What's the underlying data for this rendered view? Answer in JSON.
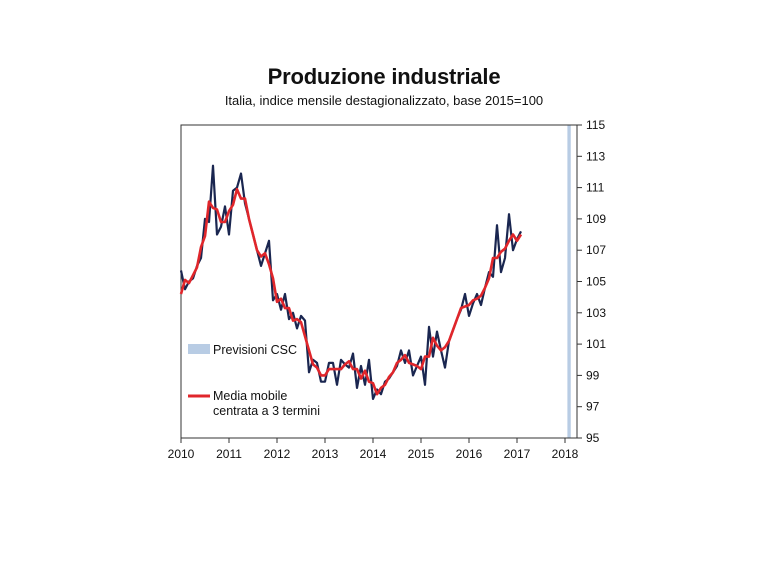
{
  "chart_data": {
    "type": "line",
    "title": "Produzione industriale",
    "subtitle": "Italia, indice mensile destagionalizzato,  base 2015=100",
    "ylim": [
      95,
      115
    ],
    "yticks": [
      95,
      97,
      99,
      101,
      103,
      105,
      107,
      109,
      111,
      113,
      115
    ],
    "xlim": [
      2010.0,
      2018.25
    ],
    "xticks": [
      "2010",
      "2011",
      "2012",
      "2013",
      "2014",
      "2015",
      "2016",
      "2017",
      "2018"
    ],
    "y_axis_side": "right",
    "forecast_band": {
      "label": "Previsioni CSC",
      "x_start": 2018.05,
      "x_end": 2018.12,
      "color": "#b8cce4"
    },
    "series": [
      {
        "name": "",
        "color": "#1a2650",
        "x_start": 2010.0,
        "step": 0.0833333,
        "values": [
          105.7,
          104.5,
          105.0,
          105.2,
          106.0,
          106.5,
          109.0,
          108.8,
          112.4,
          108.0,
          108.5,
          109.8,
          108.0,
          110.8,
          111.0,
          111.9,
          110.0,
          109.0,
          108.0,
          107.0,
          106.0,
          106.8,
          107.6,
          103.8,
          104.2,
          103.2,
          104.2,
          102.6,
          103.0,
          102.0,
          102.8,
          102.5,
          99.2,
          100.0,
          99.8,
          98.6,
          98.6,
          99.8,
          99.8,
          98.4,
          100.0,
          99.7,
          99.5,
          100.4,
          98.2,
          99.6,
          98.4,
          100.0,
          97.5,
          98.1,
          97.8,
          98.6,
          98.8,
          99.2,
          99.6,
          100.6,
          99.8,
          100.6,
          99.0,
          99.6,
          100.2,
          98.4,
          102.1,
          100.2,
          101.8,
          100.6,
          99.5,
          101.2,
          101.9,
          102.6,
          103.2,
          104.2,
          102.8,
          103.6,
          104.2,
          103.5,
          104.6,
          105.6,
          105.3,
          108.6,
          105.6,
          106.5,
          109.3,
          107.0,
          107.7,
          108.2
        ]
      },
      {
        "name": "Media mobile centrata a 3 termini",
        "color": "#e0262b",
        "x_start": 2010.0,
        "step": 0.0833333,
        "values": [
          104.2,
          105.1,
          104.9,
          105.4,
          105.9,
          107.2,
          107.9,
          110.1,
          109.7,
          109.6,
          108.8,
          108.8,
          109.5,
          109.9,
          110.9,
          110.3,
          110.3,
          109.0,
          108.0,
          107.0,
          106.6,
          106.8,
          106.1,
          105.2,
          103.7,
          103.9,
          103.3,
          103.3,
          102.5,
          102.6,
          102.4,
          101.5,
          100.6,
          99.7,
          99.5,
          99.0,
          99.0,
          99.4,
          99.4,
          99.4,
          99.4,
          99.7,
          99.9,
          99.4,
          99.4,
          98.8,
          99.3,
          98.6,
          98.5,
          97.8,
          98.2,
          98.4,
          98.9,
          99.2,
          99.8,
          100.0,
          100.3,
          99.8,
          99.7,
          99.6,
          99.4,
          100.2,
          100.2,
          101.4,
          100.9,
          100.6,
          100.8,
          101.2,
          101.9,
          102.6,
          103.3,
          103.4,
          103.5,
          103.8,
          103.9,
          104.1,
          104.6,
          105.2,
          106.5,
          106.5,
          106.9,
          107.1,
          107.6,
          108.0,
          107.6,
          108.0
        ]
      }
    ],
    "legend_position": "left-center",
    "grid": false
  }
}
